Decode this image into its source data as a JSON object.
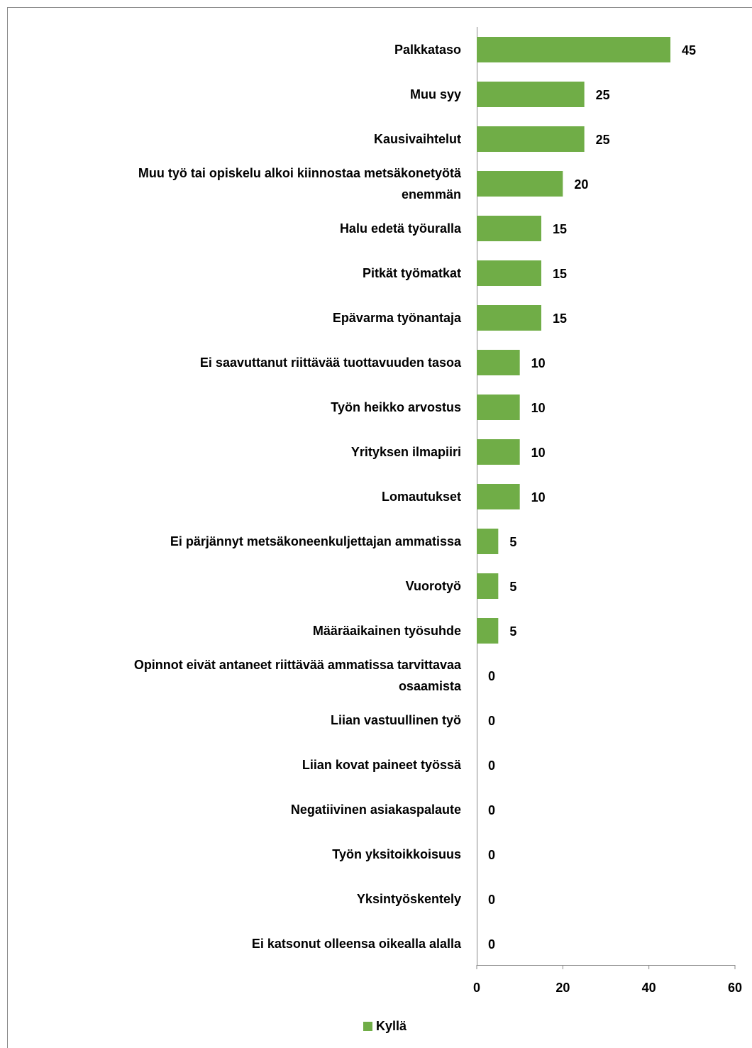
{
  "chart_data": {
    "type": "bar",
    "orientation": "horizontal",
    "categories": [
      "Palkkataso",
      "Muu syy",
      "Kausivaihtelut",
      "Muu työ tai opiskelu alkoi kiinnostaa metsäkonetyötä enemmän",
      "Halu edetä työuralla",
      "Pitkät työmatkat",
      "Epävarma työnantaja",
      "Ei saavuttanut riittävää tuottavuuden tasoa",
      "Työn heikko arvostus",
      "Yrityksen ilmapiiri",
      "Lomautukset",
      "Ei pärjännyt metsäkoneenkuljettajan ammatissa",
      "Vuorotyö",
      "Määräaikainen työsuhde",
      "Opinnot eivät antaneet riittävää ammatissa tarvittavaa osaamista",
      "Liian vastuullinen työ",
      "Liian kovat paineet työssä",
      "Negatiivinen asiakaspalaute",
      "Työn yksitoikkoisuus",
      "Yksintyöskentely",
      "Ei katsonut olleensa oikealla alalla"
    ],
    "series": [
      {
        "name": "Kyllä",
        "color": "#70ad47",
        "values": [
          45,
          25,
          25,
          20,
          15,
          15,
          15,
          10,
          10,
          10,
          10,
          5,
          5,
          5,
          0,
          0,
          0,
          0,
          0,
          0,
          0
        ]
      }
    ],
    "xlim": [
      0,
      60
    ],
    "xticks": [
      0,
      20,
      40,
      60
    ],
    "legend": "bottom"
  }
}
